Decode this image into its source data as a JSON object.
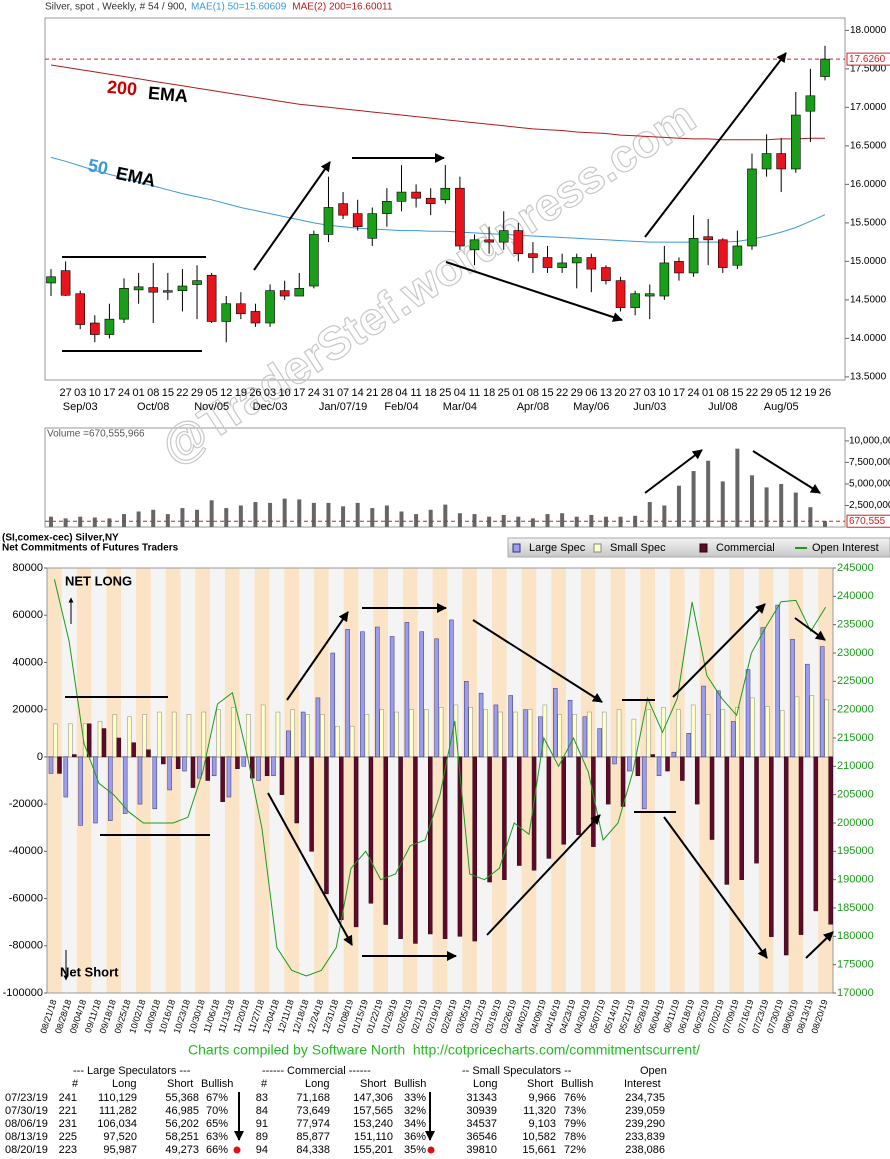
{
  "chart_data": [
    {
      "type": "candlestick",
      "title": "Silver, spot , Weekly, # 54 / 900,",
      "categories": [
        null,
        "27",
        "03",
        "10",
        "17",
        "24",
        "01",
        "08",
        "15",
        "22",
        "29",
        "05",
        "12",
        "19",
        "26",
        "03",
        "10",
        "17",
        "24",
        "31",
        "07",
        "14",
        "21",
        "28",
        "04",
        "11",
        "18",
        "25",
        "04",
        "11",
        "18",
        "25",
        "01",
        "08",
        "15",
        "22",
        "29",
        "06",
        "13",
        "20",
        "27",
        "03",
        "10",
        "17",
        "24",
        "01",
        "08",
        "15",
        "22",
        "29",
        "05",
        "12",
        "19",
        "26"
      ],
      "month_labels": [
        null,
        null,
        "Sep/03",
        null,
        null,
        null,
        null,
        "Oct/08",
        null,
        null,
        null,
        "Nov/05",
        null,
        null,
        null,
        "Dec/03",
        null,
        null,
        null,
        null,
        "Jan/07/19",
        null,
        null,
        null,
        "Feb/04",
        null,
        null,
        null,
        "Mar/04",
        null,
        null,
        null,
        null,
        "Apr/08",
        null,
        null,
        null,
        "May/06",
        null,
        null,
        null,
        "Jun/03",
        null,
        null,
        null,
        null,
        "Jul/08",
        null,
        null,
        null,
        "Aug/05",
        null,
        null,
        null
      ],
      "open": [
        14.72,
        14.88,
        14.58,
        14.2,
        14.05,
        14.25,
        14.63,
        14.66,
        14.6,
        14.62,
        14.7,
        14.82,
        14.22,
        14.45,
        14.35,
        14.2,
        14.62,
        14.55,
        14.68,
        15.35,
        15.75,
        15.62,
        15.3,
        15.62,
        15.78,
        15.9,
        15.82,
        15.8,
        15.95,
        15.15,
        15.28,
        15.25,
        15.4,
        15.1,
        15.05,
        14.92,
        14.98,
        15.05,
        14.92,
        14.75,
        14.4,
        14.55,
        14.55,
        15.0,
        14.85,
        15.32,
        15.28,
        14.95,
        15.2,
        16.2,
        16.4,
        16.2,
        16.95,
        17.4
      ],
      "high": [
        14.9,
        15.0,
        14.62,
        14.3,
        14.45,
        14.78,
        14.85,
        14.98,
        14.85,
        14.9,
        14.95,
        14.85,
        14.55,
        14.6,
        14.45,
        14.7,
        14.75,
        14.85,
        15.4,
        16.1,
        15.9,
        15.8,
        15.7,
        15.95,
        16.25,
        16.0,
        15.95,
        16.25,
        16.1,
        15.35,
        15.45,
        15.65,
        15.5,
        15.25,
        15.2,
        15.1,
        15.1,
        15.1,
        14.95,
        14.8,
        14.62,
        14.7,
        15.2,
        15.05,
        15.6,
        15.55,
        15.3,
        15.4,
        16.4,
        16.65,
        16.6,
        17.2,
        17.5,
        17.8
      ],
      "low": [
        14.55,
        14.55,
        14.12,
        13.95,
        14.0,
        14.2,
        14.45,
        14.2,
        14.5,
        14.35,
        14.25,
        14.2,
        13.95,
        14.25,
        14.15,
        14.15,
        14.5,
        14.55,
        14.65,
        15.25,
        15.55,
        15.4,
        15.2,
        15.45,
        15.65,
        15.7,
        15.6,
        15.75,
        15.15,
        14.95,
        15.1,
        15.15,
        15.0,
        14.85,
        14.85,
        14.85,
        14.65,
        14.6,
        14.7,
        14.35,
        14.3,
        14.25,
        14.5,
        14.75,
        14.8,
        14.95,
        14.85,
        14.9,
        15.15,
        16.1,
        15.9,
        16.15,
        16.55,
        17.35
      ],
      "close": [
        14.8,
        14.56,
        14.18,
        14.05,
        14.25,
        14.65,
        14.67,
        14.6,
        14.62,
        14.68,
        14.75,
        14.22,
        14.45,
        14.32,
        14.2,
        14.62,
        14.55,
        14.65,
        15.35,
        15.7,
        15.6,
        15.45,
        15.62,
        15.78,
        15.9,
        15.82,
        15.75,
        15.95,
        15.2,
        15.28,
        15.25,
        15.4,
        15.1,
        15.05,
        14.92,
        14.98,
        15.05,
        14.9,
        14.75,
        14.4,
        14.58,
        14.58,
        14.98,
        14.85,
        15.3,
        15.28,
        14.92,
        15.2,
        16.2,
        16.4,
        16.2,
        16.9,
        17.15,
        17.626
      ],
      "up_color": "#1a9e1a",
      "down_color": "#e8141c",
      "series": [
        {
          "name": "MAE(1) 50=15.60609",
          "color": "#3a9ad9",
          "values": [
            16.35,
            16.3,
            16.24,
            16.18,
            16.13,
            16.08,
            16.03,
            15.98,
            15.93,
            15.88,
            15.84,
            15.8,
            15.75,
            15.7,
            15.66,
            15.62,
            15.58,
            15.54,
            15.5,
            15.47,
            15.45,
            15.43,
            15.42,
            15.41,
            15.4,
            15.4,
            15.39,
            15.39,
            15.38,
            15.37,
            15.36,
            15.35,
            15.34,
            15.33,
            15.32,
            15.31,
            15.3,
            15.29,
            15.28,
            15.27,
            15.26,
            15.25,
            15.25,
            15.25,
            15.25,
            15.25,
            15.25,
            15.26,
            15.29,
            15.33,
            15.38,
            15.44,
            15.52,
            15.606
          ]
        },
        {
          "name": "MAE(2) 200=16.60011",
          "color": "#b01c1c",
          "values": [
            17.55,
            17.52,
            17.49,
            17.46,
            17.43,
            17.4,
            17.37,
            17.34,
            17.31,
            17.28,
            17.25,
            17.22,
            17.19,
            17.16,
            17.13,
            17.1,
            17.07,
            17.04,
            17.02,
            17.0,
            16.98,
            16.96,
            16.94,
            16.92,
            16.9,
            16.88,
            16.86,
            16.84,
            16.82,
            16.8,
            16.78,
            16.76,
            16.74,
            16.72,
            16.71,
            16.7,
            16.68,
            16.67,
            16.66,
            16.64,
            16.63,
            16.62,
            16.61,
            16.6,
            16.59,
            16.59,
            16.58,
            16.58,
            16.58,
            16.58,
            16.59,
            16.59,
            16.6,
            16.6
          ]
        }
      ],
      "ylim": [
        13.46,
        18.16
      ],
      "yticks": [
        {
          "value": 13.5,
          "label": "13.5000"
        },
        {
          "value": 14,
          "label": "14.0000"
        },
        {
          "value": 14.5,
          "label": "14.5000"
        },
        {
          "value": 15,
          "label": "15.0000"
        },
        {
          "value": 15.5,
          "label": "15.5000"
        },
        {
          "value": 16,
          "label": "16.0000"
        },
        {
          "value": 16.5,
          "label": "16.5000"
        },
        {
          "value": 17,
          "label": "17.0000"
        },
        {
          "value": 17.5,
          "label": "17.5000"
        },
        {
          "value": 18,
          "label": "18.0000"
        }
      ],
      "last_price": {
        "value": 17.626,
        "label": "17.6260"
      },
      "ema200_label": [
        "200",
        "EMA"
      ],
      "ema50_label": [
        "50",
        "EMA"
      ],
      "watermark": "@TraderStef.wordpress.com"
    },
    {
      "type": "bar",
      "title": "Volume =670,555,966",
      "color": "#666666",
      "values": [
        1200000,
        1000000,
        1200000,
        1100000,
        1000000,
        1500000,
        1800000,
        2000000,
        1500000,
        2200000,
        2000000,
        3100000,
        2200000,
        2500000,
        2900000,
        2800000,
        3300000,
        3200000,
        2800000,
        2800000,
        2400000,
        2800000,
        2200000,
        2500000,
        1800000,
        1500000,
        2000000,
        2600000,
        1600000,
        1500000,
        1200000,
        1400000,
        1200000,
        1000000,
        1500000,
        1600000,
        1200000,
        1400000,
        1200000,
        1200000,
        1300000,
        2900000,
        2500000,
        4800000,
        6500000,
        7700000,
        5300000,
        9100000,
        6000000,
        4600000,
        5000000,
        4000000,
        2300000,
        670555
      ],
      "ylim": [
        0,
        11500000
      ],
      "yticks": [
        {
          "value": 2500000,
          "label": "2,500,000"
        },
        {
          "value": 5000000,
          "label": "5,000,000"
        },
        {
          "value": 7500000,
          "label": "7,500,000"
        },
        {
          "value": 10000000,
          "label": "10,000,000"
        }
      ],
      "last_value": {
        "value": 670555,
        "label": "670,555"
      }
    },
    {
      "type": "cot",
      "title": "(SI,comex-cec) Silver,NY",
      "subtitle": "Net Commitments of Futures Traders",
      "categories": [
        "08/21/18",
        "08/28/18",
        "09/04/18",
        "09/11/18",
        "09/18/18",
        "09/25/18",
        "10/02/18",
        "10/09/18",
        "10/16/18",
        "10/23/18",
        "10/30/18",
        "11/06/18",
        "11/13/18",
        "11/20/18",
        "11/27/18",
        "12/04/18",
        "12/11/18",
        "12/18/18",
        "12/24/18",
        "12/31/18",
        "01/08/19",
        "01/15/19",
        "01/22/19",
        "01/29/19",
        "02/05/19",
        "02/12/19",
        "02/19/19",
        "02/26/19",
        "03/05/19",
        "03/12/19",
        "03/19/19",
        "03/26/19",
        "04/02/19",
        "04/09/19",
        "04/16/19",
        "04/23/19",
        "04/30/19",
        "05/07/19",
        "05/14/19",
        "05/21/19",
        "05/28/19",
        "06/04/19",
        "06/11/19",
        "06/18/19",
        "06/25/19",
        "07/02/19",
        "07/09/19",
        "07/16/19",
        "07/23/19",
        "07/30/19",
        "08/06/19",
        "08/13/19",
        "08/20/19"
      ],
      "series": [
        {
          "name": "Large Spec",
          "color": "#9c9cec",
          "values": [
            -7000,
            -17000,
            -29000,
            -28000,
            -27000,
            -24000,
            -20000,
            -22000,
            -14000,
            -6000,
            -9000,
            -8000,
            -17000,
            -4000,
            -10000,
            -8000,
            11000,
            19000,
            25000,
            44000,
            54000,
            53000,
            55000,
            51000,
            57000,
            53000,
            50000,
            58000,
            32000,
            27000,
            22000,
            26000,
            20000,
            17000,
            29000,
            24000,
            17000,
            12000,
            -3000,
            -6000,
            -22000,
            -8000,
            2000,
            10000,
            30000,
            28000,
            15000,
            37000,
            54761,
            64297,
            49832,
            39269,
            46714
          ]
        },
        {
          "name": "Small Spec",
          "color": "#ffffc8",
          "values": [
            14000,
            14000,
            14000,
            15000,
            18000,
            17000,
            18000,
            19000,
            19000,
            18000,
            19000,
            20000,
            21000,
            18000,
            22000,
            19000,
            20000,
            18000,
            18000,
            13000,
            13000,
            18000,
            20000,
            19000,
            20000,
            20000,
            21000,
            22000,
            21000,
            20000,
            19000,
            19000,
            20000,
            22000,
            18000,
            18000,
            19000,
            19000,
            20000,
            16000,
            20000,
            21000,
            20000,
            22000,
            18000,
            20000,
            21000,
            25000,
            21377,
            19619,
            25434,
            25964,
            24149
          ]
        },
        {
          "name": "Commercial",
          "color": "#5e0a2a",
          "values": [
            -7000,
            1000,
            14000,
            12000,
            8000,
            6000,
            3000,
            -3000,
            -5000,
            -13000,
            -10000,
            -19000,
            -5000,
            -9000,
            -8000,
            -16000,
            -28000,
            -40000,
            -58000,
            -69000,
            -72000,
            -62000,
            -71000,
            -77000,
            -79000,
            -75000,
            -77000,
            -76000,
            -78000,
            -53000,
            -52000,
            -46000,
            -48000,
            -43000,
            -37000,
            -33000,
            -38000,
            -20000,
            -21000,
            -8000,
            1000,
            -6000,
            -10000,
            -20000,
            -35000,
            -54000,
            -52000,
            -45000,
            -76138,
            -83916,
            -75266,
            -65233,
            -70863
          ]
        },
        {
          "name": "Open Interest",
          "color": "#1c9a1c",
          "axis": "y2",
          "values": [
            243000,
            232000,
            214000,
            207000,
            205000,
            202000,
            200000,
            200000,
            200000,
            201000,
            209000,
            221000,
            223000,
            212000,
            199000,
            178000,
            174000,
            173000,
            174000,
            178000,
            192000,
            195000,
            190000,
            191000,
            196000,
            197000,
            205000,
            218000,
            191000,
            190000,
            192000,
            200000,
            198000,
            215000,
            210000,
            215000,
            209000,
            197000,
            200000,
            209000,
            222000,
            216000,
            222000,
            239000,
            226000,
            222000,
            219000,
            230000,
            234735,
            239059,
            239290,
            233839,
            238086
          ]
        }
      ],
      "ylim": [
        -100000,
        80000
      ],
      "yticks": [
        -100000,
        -80000,
        -60000,
        -40000,
        -20000,
        0,
        20000,
        40000,
        60000,
        80000
      ],
      "y2lim": [
        170000,
        245000
      ],
      "y2ticks": [
        170000,
        175000,
        180000,
        185000,
        190000,
        195000,
        200000,
        205000,
        210000,
        215000,
        220000,
        225000,
        230000,
        235000,
        240000,
        245000
      ],
      "annotations": [
        "NET LONG",
        "Net Short"
      ],
      "credit": "Charts compiled by Software North  http://cotpricecharts.com/commitmentscurrent/"
    }
  ],
  "table": {
    "header1": [
      "--- Large Speculators ---",
      "------ Commercial ------",
      "-- Small Speculators --",
      "Open"
    ],
    "header2": [
      "#",
      "Long",
      "Short",
      "Bullish",
      "#",
      "Long",
      "Short",
      "Bullish",
      "Long",
      "Short",
      "Bullish",
      "Interest"
    ],
    "rows": [
      [
        "07/23/19",
        "241",
        "110,129",
        "55,368",
        "67%",
        "83",
        "71,168",
        "147,306",
        "33%",
        "31343",
        "9,966",
        "76%",
        "234,735"
      ],
      [
        "07/30/19",
        "221",
        "111,282",
        "46,985",
        "70%",
        "84",
        "73,649",
        "157,565",
        "32%",
        "30939",
        "11,320",
        "73%",
        "239,059"
      ],
      [
        "08/06/19",
        "231",
        "106,034",
        "56,202",
        "65%",
        "91",
        "77,974",
        "153,240",
        "34%",
        "34537",
        "9,103",
        "79%",
        "239,290"
      ],
      [
        "08/13/19",
        "225",
        "97,520",
        "58,251",
        "63%",
        "89",
        "85,877",
        "151,110",
        "36%",
        "36546",
        "10,582",
        "78%",
        "233,839"
      ],
      [
        "08/20/19",
        "223",
        "95,987",
        "49,273",
        "66%",
        "94",
        "84,338",
        "155,201",
        "35%",
        "39810",
        "15,661",
        "72%",
        "238,086"
      ]
    ]
  }
}
